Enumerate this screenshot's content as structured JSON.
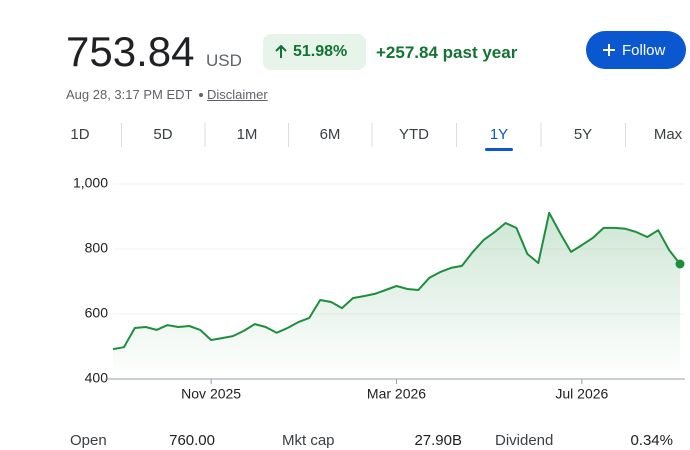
{
  "header": {
    "price": "753.84",
    "currency": "USD",
    "change_pct": "51.98%",
    "change_abs": "+257.84 past year",
    "follow": "Follow",
    "date": "Aug 28, 3:17 PM EDT",
    "disclaimer": "Disclaimer"
  },
  "tabs": {
    "items": [
      "1D",
      "5D",
      "1M",
      "6M",
      "YTD",
      "1Y",
      "5Y",
      "Max"
    ],
    "selected": 5
  },
  "stats": [
    [
      "Open",
      "760.00"
    ],
    [
      "Mkt cap",
      "27.90B"
    ],
    [
      "Dividend",
      "0.34%"
    ]
  ],
  "chart_data": {
    "type": "area-line",
    "color": "#1e8e3e",
    "categories": [
      null,
      null,
      null,
      null,
      null,
      null,
      null,
      null,
      null,
      "Nov 2025",
      null,
      null,
      null,
      null,
      null,
      null,
      null,
      null,
      null,
      null,
      null,
      null,
      null,
      null,
      null,
      null,
      "Mar 2026",
      null,
      null,
      null,
      null,
      null,
      null,
      null,
      null,
      null,
      null,
      null,
      null,
      null,
      null,
      null,
      null,
      "Jul 2026",
      null,
      null,
      null,
      null,
      null,
      null,
      null,
      null,
      null
    ],
    "values": [
      492,
      498,
      557,
      560,
      551,
      566,
      560,
      563,
      551,
      520,
      526,
      532,
      548,
      569,
      560,
      542,
      557,
      575,
      588,
      643,
      637,
      618,
      649,
      655,
      662,
      674,
      686,
      677,
      674,
      711,
      729,
      742,
      748,
      791,
      828,
      852,
      880,
      865,
      785,
      757,
      911,
      849,
      791,
      812,
      834,
      865,
      865,
      862,
      852,
      837,
      858,
      797,
      753.84
    ],
    "ylim": [
      400,
      1000
    ],
    "yticks": [
      400,
      600,
      800,
      {
        "value": 1000,
        "label": "1,000"
      }
    ],
    "grid": true
  }
}
